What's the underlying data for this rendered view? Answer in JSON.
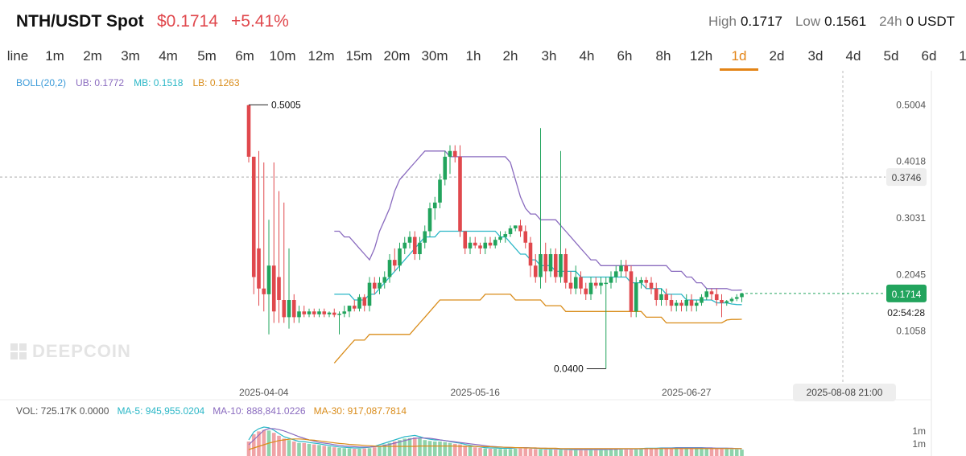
{
  "header": {
    "pair": "NTH/USDT Spot",
    "price": "$0.1714",
    "change": "+5.41%",
    "stats": [
      {
        "label": "High",
        "value": "0.1717"
      },
      {
        "label": "Low",
        "value": "0.1561"
      },
      {
        "label": "24h",
        "value": "0 USDT"
      }
    ]
  },
  "intervals": [
    "line",
    "1m",
    "2m",
    "3m",
    "4m",
    "5m",
    "6m",
    "10m",
    "12m",
    "15m",
    "20m",
    "30m",
    "1h",
    "2h",
    "3h",
    "4h",
    "6h",
    "8h",
    "12h",
    "1d",
    "2d",
    "3d",
    "4d",
    "5d",
    "6d",
    "1"
  ],
  "active_interval": "1d",
  "boll_legend": [
    {
      "text": "BOLL(20,2)",
      "color": "#3a9ad9"
    },
    {
      "text": "UB: 0.1772",
      "color": "#8a6bbf"
    },
    {
      "text": "MB: 0.1518",
      "color": "#2bb7c7"
    },
    {
      "text": "LB: 0.1263",
      "color": "#d98c1a"
    }
  ],
  "vol_legend": [
    {
      "text": "VOL: 725.17K 0.0000",
      "color": "#555555"
    },
    {
      "text": "MA-5: 945,955.0204",
      "color": "#2bb7c7"
    },
    {
      "text": "MA-10: 888,841.0226",
      "color": "#8a6bbf"
    },
    {
      "text": "MA-30: 917,087.7814",
      "color": "#d98c1a"
    }
  ],
  "watermark": "DEEPCOIN",
  "colors": {
    "up": "#22a45d",
    "down": "#e0484d",
    "ub": "#8a6bbf",
    "mb": "#2bb7c7",
    "lb": "#d98c1a",
    "accent": "#e38416"
  },
  "chart_data": {
    "type": "candlestick",
    "ylim": [
      0.0,
      0.56
    ],
    "y_ticks": [
      "0.5004",
      "0.4018",
      "0.3031",
      "0.2045",
      "0.1058"
    ],
    "y_tick_values": [
      0.5004,
      0.4018,
      0.3031,
      0.2045,
      0.1058
    ],
    "x_ticks": [
      {
        "label": "2025-04-04",
        "index": 3
      },
      {
        "label": "2025-05-16",
        "index": 45
      },
      {
        "label": "2025-06-27",
        "index": 87
      }
    ],
    "crosshair": {
      "price": "0.3746",
      "time": "2025-08-08 21:00",
      "price_value": 0.3746
    },
    "current_price": {
      "label": "0.1714",
      "value": 0.1714,
      "countdown": "02:54:28"
    },
    "max_label": {
      "text": "0.5005",
      "index": 0
    },
    "min_label": {
      "text": "0.0400",
      "index": 71
    },
    "candles": [
      [
        0.5,
        0.5005,
        0.4,
        0.41
      ],
      [
        0.41,
        0.41,
        0.17,
        0.2
      ],
      [
        0.25,
        0.42,
        0.15,
        0.18
      ],
      [
        0.18,
        0.4,
        0.14,
        0.17
      ],
      [
        0.17,
        0.3,
        0.1,
        0.22
      ],
      [
        0.22,
        0.4,
        0.12,
        0.14
      ],
      [
        0.2,
        0.35,
        0.12,
        0.16
      ],
      [
        0.16,
        0.33,
        0.12,
        0.13
      ],
      [
        0.13,
        0.25,
        0.11,
        0.16
      ],
      [
        0.16,
        0.17,
        0.12,
        0.13
      ],
      [
        0.13,
        0.15,
        0.12,
        0.14
      ],
      [
        0.14,
        0.15,
        0.13,
        0.135
      ],
      [
        0.135,
        0.145,
        0.13,
        0.14
      ],
      [
        0.14,
        0.145,
        0.13,
        0.135
      ],
      [
        0.135,
        0.145,
        0.13,
        0.14
      ],
      [
        0.14,
        0.145,
        0.13,
        0.135
      ],
      [
        0.135,
        0.14,
        0.13,
        0.138
      ],
      [
        0.138,
        0.145,
        0.13,
        0.134
      ],
      [
        0.134,
        0.14,
        0.1,
        0.136
      ],
      [
        0.136,
        0.15,
        0.13,
        0.14
      ],
      [
        0.14,
        0.15,
        0.13,
        0.15
      ],
      [
        0.15,
        0.16,
        0.14,
        0.145
      ],
      [
        0.145,
        0.17,
        0.14,
        0.165
      ],
      [
        0.165,
        0.17,
        0.14,
        0.15
      ],
      [
        0.15,
        0.2,
        0.14,
        0.19
      ],
      [
        0.19,
        0.2,
        0.17,
        0.18
      ],
      [
        0.18,
        0.2,
        0.17,
        0.19
      ],
      [
        0.19,
        0.21,
        0.18,
        0.2
      ],
      [
        0.2,
        0.24,
        0.19,
        0.23
      ],
      [
        0.23,
        0.25,
        0.21,
        0.22
      ],
      [
        0.22,
        0.26,
        0.21,
        0.25
      ],
      [
        0.25,
        0.27,
        0.24,
        0.26
      ],
      [
        0.26,
        0.28,
        0.25,
        0.27
      ],
      [
        0.27,
        0.28,
        0.23,
        0.24
      ],
      [
        0.24,
        0.27,
        0.23,
        0.26
      ],
      [
        0.26,
        0.29,
        0.25,
        0.28
      ],
      [
        0.28,
        0.33,
        0.27,
        0.32
      ],
      [
        0.32,
        0.34,
        0.3,
        0.33
      ],
      [
        0.33,
        0.38,
        0.32,
        0.37
      ],
      [
        0.37,
        0.42,
        0.36,
        0.41
      ],
      [
        0.41,
        0.43,
        0.38,
        0.42
      ],
      [
        0.42,
        0.43,
        0.4,
        0.41
      ],
      [
        0.41,
        0.43,
        0.27,
        0.28
      ],
      [
        0.28,
        0.28,
        0.24,
        0.25
      ],
      [
        0.25,
        0.27,
        0.24,
        0.26
      ],
      [
        0.26,
        0.27,
        0.25,
        0.255
      ],
      [
        0.255,
        0.26,
        0.24,
        0.25
      ],
      [
        0.25,
        0.27,
        0.24,
        0.26
      ],
      [
        0.26,
        0.27,
        0.25,
        0.255
      ],
      [
        0.255,
        0.27,
        0.25,
        0.265
      ],
      [
        0.265,
        0.28,
        0.26,
        0.27
      ],
      [
        0.27,
        0.28,
        0.26,
        0.275
      ],
      [
        0.275,
        0.29,
        0.27,
        0.285
      ],
      [
        0.285,
        0.29,
        0.28,
        0.29
      ],
      [
        0.29,
        0.3,
        0.27,
        0.28
      ],
      [
        0.28,
        0.29,
        0.25,
        0.26
      ],
      [
        0.26,
        0.27,
        0.2,
        0.22
      ],
      [
        0.22,
        0.24,
        0.19,
        0.2
      ],
      [
        0.2,
        0.46,
        0.18,
        0.24
      ],
      [
        0.24,
        0.26,
        0.19,
        0.21
      ],
      [
        0.21,
        0.25,
        0.2,
        0.24
      ],
      [
        0.24,
        0.25,
        0.19,
        0.2
      ],
      [
        0.2,
        0.42,
        0.19,
        0.24
      ],
      [
        0.24,
        0.25,
        0.18,
        0.19
      ],
      [
        0.19,
        0.21,
        0.17,
        0.18
      ],
      [
        0.18,
        0.22,
        0.17,
        0.2
      ],
      [
        0.2,
        0.21,
        0.17,
        0.18
      ],
      [
        0.18,
        0.19,
        0.16,
        0.17
      ],
      [
        0.17,
        0.2,
        0.16,
        0.19
      ],
      [
        0.19,
        0.2,
        0.18,
        0.185
      ],
      [
        0.185,
        0.2,
        0.17,
        0.19
      ],
      [
        0.19,
        0.2,
        0.04,
        0.19
      ],
      [
        0.19,
        0.21,
        0.18,
        0.2
      ],
      [
        0.2,
        0.22,
        0.19,
        0.21
      ],
      [
        0.21,
        0.23,
        0.2,
        0.22
      ],
      [
        0.22,
        0.23,
        0.2,
        0.21
      ],
      [
        0.21,
        0.22,
        0.13,
        0.14
      ],
      [
        0.14,
        0.2,
        0.13,
        0.19
      ],
      [
        0.19,
        0.2,
        0.18,
        0.195
      ],
      [
        0.195,
        0.2,
        0.18,
        0.19
      ],
      [
        0.19,
        0.2,
        0.17,
        0.18
      ],
      [
        0.18,
        0.19,
        0.15,
        0.16
      ],
      [
        0.16,
        0.18,
        0.15,
        0.17
      ],
      [
        0.17,
        0.18,
        0.15,
        0.16
      ],
      [
        0.16,
        0.17,
        0.14,
        0.15
      ],
      [
        0.15,
        0.16,
        0.14,
        0.155
      ],
      [
        0.155,
        0.16,
        0.14,
        0.15
      ],
      [
        0.15,
        0.17,
        0.14,
        0.16
      ],
      [
        0.16,
        0.17,
        0.14,
        0.15
      ],
      [
        0.15,
        0.16,
        0.14,
        0.155
      ],
      [
        0.155,
        0.17,
        0.15,
        0.165
      ],
      [
        0.165,
        0.18,
        0.16,
        0.175
      ],
      [
        0.175,
        0.18,
        0.16,
        0.17
      ],
      [
        0.17,
        0.18,
        0.15,
        0.16
      ],
      [
        0.16,
        0.17,
        0.13,
        0.155
      ],
      [
        0.155,
        0.16,
        0.15,
        0.158
      ],
      [
        0.158,
        0.165,
        0.155,
        0.162
      ],
      [
        0.162,
        0.17,
        0.158,
        0.165
      ],
      [
        0.165,
        0.1717,
        0.1561,
        0.1714
      ]
    ],
    "ub": [
      null,
      null,
      null,
      null,
      null,
      null,
      null,
      null,
      null,
      null,
      null,
      null,
      null,
      null,
      null,
      null,
      null,
      0.28,
      0.28,
      0.27,
      0.27,
      0.26,
      0.25,
      0.24,
      0.23,
      0.25,
      0.28,
      0.3,
      0.32,
      0.35,
      0.37,
      0.38,
      0.39,
      0.4,
      0.41,
      0.42,
      0.42,
      0.42,
      0.42,
      0.42,
      0.41,
      0.41,
      0.41,
      0.41,
      0.41,
      0.41,
      0.41,
      0.41,
      0.41,
      0.41,
      0.41,
      0.41,
      0.4,
      0.37,
      0.34,
      0.32,
      0.31,
      0.31,
      0.3,
      0.3,
      0.3,
      0.3,
      0.29,
      0.28,
      0.27,
      0.26,
      0.25,
      0.24,
      0.23,
      0.23,
      0.22,
      0.22,
      0.22,
      0.22,
      0.22,
      0.22,
      0.22,
      0.22,
      0.22,
      0.22,
      0.22,
      0.22,
      0.22,
      0.22,
      0.21,
      0.21,
      0.21,
      0.2,
      0.2,
      0.19,
      0.19,
      0.18,
      0.18,
      0.18,
      0.18,
      0.18,
      0.177,
      0.177,
      0.1772
    ],
    "mb": [
      null,
      null,
      null,
      null,
      null,
      null,
      null,
      null,
      null,
      null,
      null,
      null,
      null,
      null,
      null,
      null,
      null,
      0.17,
      0.17,
      0.17,
      0.17,
      0.16,
      0.16,
      0.16,
      0.17,
      0.17,
      0.18,
      0.19,
      0.2,
      0.21,
      0.22,
      0.23,
      0.24,
      0.25,
      0.26,
      0.27,
      0.27,
      0.27,
      0.28,
      0.28,
      0.28,
      0.28,
      0.28,
      0.28,
      0.28,
      0.28,
      0.28,
      0.28,
      0.28,
      0.28,
      0.27,
      0.27,
      0.26,
      0.25,
      0.24,
      0.24,
      0.23,
      0.23,
      0.22,
      0.22,
      0.22,
      0.21,
      0.21,
      0.21,
      0.21,
      0.21,
      0.2,
      0.2,
      0.2,
      0.2,
      0.2,
      0.2,
      0.2,
      0.2,
      0.2,
      0.2,
      0.19,
      0.19,
      0.19,
      0.18,
      0.18,
      0.18,
      0.18,
      0.17,
      0.17,
      0.17,
      0.17,
      0.16,
      0.16,
      0.16,
      0.16,
      0.16,
      0.16,
      0.155,
      0.155,
      0.155,
      0.153,
      0.152,
      0.1518
    ],
    "lb": [
      null,
      null,
      null,
      null,
      null,
      null,
      null,
      null,
      null,
      null,
      null,
      null,
      null,
      null,
      null,
      null,
      null,
      0.05,
      0.06,
      0.07,
      0.08,
      0.09,
      0.09,
      0.09,
      0.1,
      0.1,
      0.1,
      0.1,
      0.1,
      0.1,
      0.1,
      0.1,
      0.1,
      0.11,
      0.12,
      0.13,
      0.14,
      0.15,
      0.16,
      0.16,
      0.16,
      0.16,
      0.16,
      0.16,
      0.16,
      0.16,
      0.16,
      0.17,
      0.17,
      0.17,
      0.17,
      0.17,
      0.17,
      0.16,
      0.16,
      0.16,
      0.16,
      0.16,
      0.16,
      0.15,
      0.15,
      0.15,
      0.15,
      0.14,
      0.14,
      0.14,
      0.14,
      0.14,
      0.14,
      0.14,
      0.14,
      0.14,
      0.14,
      0.14,
      0.14,
      0.14,
      0.14,
      0.14,
      0.14,
      0.13,
      0.13,
      0.13,
      0.13,
      0.12,
      0.12,
      0.12,
      0.12,
      0.12,
      0.12,
      0.12,
      0.12,
      0.12,
      0.12,
      0.12,
      0.12,
      0.125,
      0.126,
      0.126,
      0.1263
    ],
    "volume_axis_labels": [
      "1m",
      "1m"
    ],
    "volume_ma": {
      "ma5": [
        0.5,
        0.75,
        0.85,
        0.9,
        0.88,
        0.8,
        0.7,
        0.6,
        0.55,
        0.5,
        0.45,
        0.45,
        0.42,
        0.4,
        0.38,
        0.35,
        0.33,
        0.3,
        0.28,
        0.27,
        0.26,
        0.25,
        0.25,
        0.26,
        0.27,
        0.3,
        0.35,
        0.4,
        0.45,
        0.5,
        0.55,
        0.6,
        0.62,
        0.64,
        0.6,
        0.55,
        0.52,
        0.5,
        0.5,
        0.48,
        0.45,
        0.42,
        0.4,
        0.36,
        0.33,
        0.3,
        0.28,
        0.26,
        0.25,
        0.25,
        0.24,
        0.24,
        0.24,
        0.25,
        0.26,
        0.26,
        0.25,
        0.24,
        0.23,
        0.22,
        0.22,
        0.22,
        0.21,
        0.21,
        0.2,
        0.2,
        0.2,
        0.2,
        0.2,
        0.2,
        0.2,
        0.2,
        0.21,
        0.22,
        0.22,
        0.22,
        0.22,
        0.22,
        0.23,
        0.24,
        0.24,
        0.24,
        0.25,
        0.25,
        0.25,
        0.26,
        0.26,
        0.26,
        0.26,
        0.26,
        0.26,
        0.25,
        0.25,
        0.24,
        0.24,
        0.24,
        0.23,
        0.23,
        0.22
      ],
      "ma10": [
        0.35,
        0.5,
        0.65,
        0.8,
        0.85,
        0.85,
        0.82,
        0.78,
        0.72,
        0.66,
        0.6,
        0.55,
        0.5,
        0.46,
        0.42,
        0.4,
        0.38,
        0.35,
        0.33,
        0.31,
        0.3,
        0.29,
        0.28,
        0.28,
        0.28,
        0.29,
        0.3,
        0.33,
        0.36,
        0.4,
        0.44,
        0.48,
        0.52,
        0.55,
        0.56,
        0.56,
        0.55,
        0.53,
        0.5,
        0.48,
        0.46,
        0.44,
        0.42,
        0.4,
        0.38,
        0.36,
        0.34,
        0.32,
        0.3,
        0.29,
        0.28,
        0.27,
        0.26,
        0.26,
        0.26,
        0.26,
        0.25,
        0.25,
        0.24,
        0.24,
        0.23,
        0.23,
        0.22,
        0.22,
        0.22,
        0.21,
        0.21,
        0.21,
        0.21,
        0.21,
        0.21,
        0.21,
        0.21,
        0.21,
        0.22,
        0.22,
        0.22,
        0.22,
        0.22,
        0.23,
        0.23,
        0.23,
        0.24,
        0.24,
        0.24,
        0.25,
        0.25,
        0.25,
        0.25,
        0.25,
        0.25,
        0.25,
        0.25,
        0.24,
        0.24,
        0.24,
        0.24,
        0.23,
        0.23
      ],
      "ma30": [
        0.2,
        0.25,
        0.3,
        0.35,
        0.4,
        0.44,
        0.48,
        0.5,
        0.52,
        0.53,
        0.53,
        0.52,
        0.5,
        0.49,
        0.47,
        0.45,
        0.43,
        0.41,
        0.39,
        0.38,
        0.36,
        0.35,
        0.34,
        0.33,
        0.32,
        0.31,
        0.3,
        0.3,
        0.3,
        0.3,
        0.3,
        0.3,
        0.3,
        0.3,
        0.31,
        0.31,
        0.31,
        0.31,
        0.31,
        0.31,
        0.31,
        0.31,
        0.3,
        0.3,
        0.3,
        0.3,
        0.29,
        0.29,
        0.29,
        0.28,
        0.28,
        0.27,
        0.27,
        0.26,
        0.26,
        0.25,
        0.25,
        0.25,
        0.24,
        0.24,
        0.24,
        0.24,
        0.23,
        0.23,
        0.23,
        0.23,
        0.23,
        0.23,
        0.23,
        0.23,
        0.23,
        0.23,
        0.23,
        0.23,
        0.23,
        0.23,
        0.23,
        0.23,
        0.23,
        0.23,
        0.23,
        0.23,
        0.23,
        0.23,
        0.23,
        0.23,
        0.23,
        0.23,
        0.23,
        0.23,
        0.23,
        0.23,
        0.23,
        0.23,
        0.23,
        0.23,
        0.23,
        0.23,
        0.23
      ]
    }
  }
}
